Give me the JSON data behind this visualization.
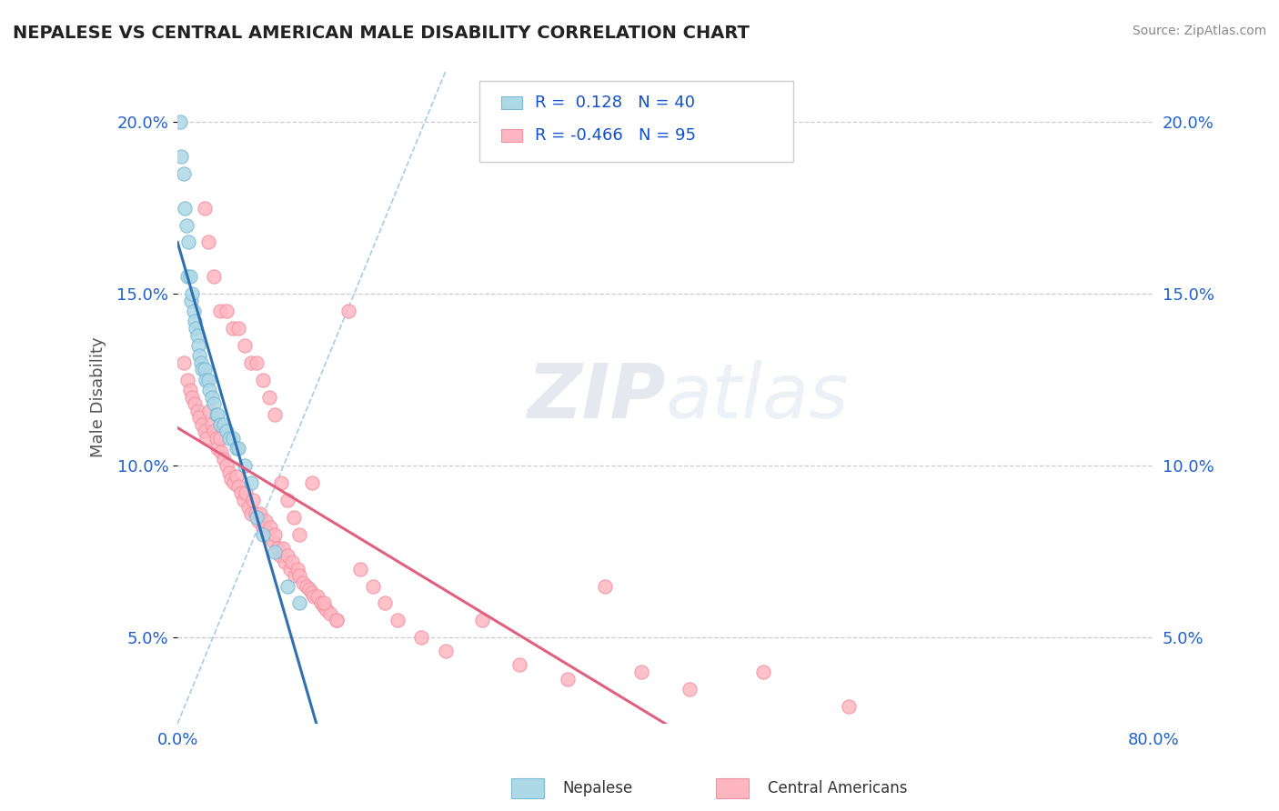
{
  "title": "NEPALESE VS CENTRAL AMERICAN MALE DISABILITY CORRELATION CHART",
  "source": "Source: ZipAtlas.com",
  "ylabel": "Male Disability",
  "watermark": "ZIPatlas",
  "nepalese_R": 0.128,
  "nepalese_N": 40,
  "central_R": -0.466,
  "central_N": 95,
  "xlim": [
    0.0,
    0.8
  ],
  "ylim": [
    0.025,
    0.215
  ],
  "yticks": [
    0.05,
    0.1,
    0.15,
    0.2
  ],
  "ytick_labels": [
    "5.0%",
    "10.0%",
    "15.0%",
    "20.0%"
  ],
  "xtick_labels": [
    "0.0%",
    "80.0%"
  ],
  "nepalese_color": "#ADD8E6",
  "nepalese_edge": "#7AB8D4",
  "central_color": "#FFB6C1",
  "central_edge": "#F090A0",
  "nepalese_line_color": "#3070B0",
  "central_line_color": "#E06080",
  "dashed_line_color": "#90C0E0",
  "nepalese_scatter_x": [
    0.002,
    0.003,
    0.005,
    0.006,
    0.007,
    0.008,
    0.009,
    0.01,
    0.011,
    0.012,
    0.013,
    0.014,
    0.015,
    0.016,
    0.017,
    0.018,
    0.019,
    0.02,
    0.022,
    0.023,
    0.025,
    0.026,
    0.028,
    0.03,
    0.032,
    0.033,
    0.035,
    0.038,
    0.04,
    0.042,
    0.045,
    0.048,
    0.05,
    0.055,
    0.06,
    0.065,
    0.07,
    0.08,
    0.09,
    0.1
  ],
  "nepalese_scatter_y": [
    0.2,
    0.19,
    0.185,
    0.175,
    0.17,
    0.155,
    0.165,
    0.155,
    0.148,
    0.15,
    0.145,
    0.142,
    0.14,
    0.138,
    0.135,
    0.132,
    0.13,
    0.128,
    0.128,
    0.125,
    0.125,
    0.122,
    0.12,
    0.118,
    0.115,
    0.115,
    0.112,
    0.112,
    0.11,
    0.108,
    0.108,
    0.105,
    0.105,
    0.1,
    0.095,
    0.085,
    0.08,
    0.075,
    0.065,
    0.06
  ],
  "central_scatter_x": [
    0.005,
    0.008,
    0.01,
    0.012,
    0.014,
    0.016,
    0.018,
    0.02,
    0.022,
    0.024,
    0.026,
    0.028,
    0.03,
    0.032,
    0.033,
    0.035,
    0.036,
    0.038,
    0.04,
    0.042,
    0.044,
    0.046,
    0.048,
    0.05,
    0.052,
    0.054,
    0.056,
    0.058,
    0.06,
    0.062,
    0.064,
    0.066,
    0.068,
    0.07,
    0.072,
    0.074,
    0.076,
    0.078,
    0.08,
    0.082,
    0.084,
    0.086,
    0.088,
    0.09,
    0.092,
    0.094,
    0.096,
    0.098,
    0.1,
    0.103,
    0.106,
    0.108,
    0.11,
    0.112,
    0.115,
    0.118,
    0.12,
    0.122,
    0.125,
    0.13,
    0.022,
    0.025,
    0.03,
    0.035,
    0.04,
    0.045,
    0.05,
    0.055,
    0.06,
    0.065,
    0.07,
    0.075,
    0.08,
    0.085,
    0.09,
    0.095,
    0.1,
    0.11,
    0.12,
    0.13,
    0.14,
    0.15,
    0.16,
    0.17,
    0.18,
    0.2,
    0.22,
    0.25,
    0.28,
    0.32,
    0.35,
    0.38,
    0.42,
    0.48,
    0.55
  ],
  "central_scatter_y": [
    0.13,
    0.125,
    0.122,
    0.12,
    0.118,
    0.116,
    0.114,
    0.112,
    0.11,
    0.108,
    0.116,
    0.112,
    0.11,
    0.108,
    0.105,
    0.108,
    0.104,
    0.102,
    0.1,
    0.098,
    0.096,
    0.095,
    0.097,
    0.094,
    0.092,
    0.09,
    0.092,
    0.088,
    0.086,
    0.09,
    0.086,
    0.084,
    0.086,
    0.082,
    0.084,
    0.08,
    0.082,
    0.078,
    0.08,
    0.076,
    0.074,
    0.076,
    0.072,
    0.074,
    0.07,
    0.072,
    0.068,
    0.07,
    0.068,
    0.066,
    0.065,
    0.064,
    0.063,
    0.062,
    0.062,
    0.06,
    0.059,
    0.058,
    0.057,
    0.055,
    0.175,
    0.165,
    0.155,
    0.145,
    0.145,
    0.14,
    0.14,
    0.135,
    0.13,
    0.13,
    0.125,
    0.12,
    0.115,
    0.095,
    0.09,
    0.085,
    0.08,
    0.095,
    0.06,
    0.055,
    0.145,
    0.07,
    0.065,
    0.06,
    0.055,
    0.05,
    0.046,
    0.055,
    0.042,
    0.038,
    0.065,
    0.04,
    0.035,
    0.04,
    0.03
  ]
}
